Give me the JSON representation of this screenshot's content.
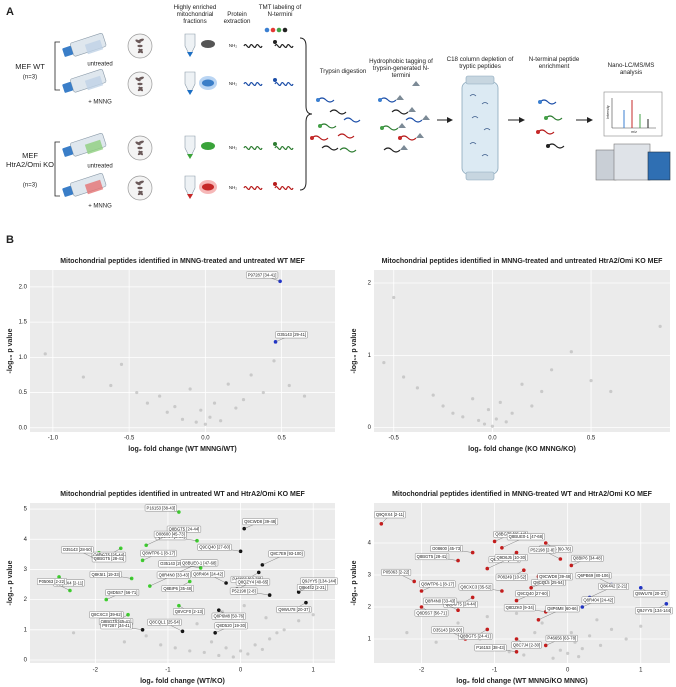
{
  "panel_a": {
    "label": "A",
    "columns": [
      "Highly enriched mitochondrial fractions",
      "Protein extraction",
      "TMT labeling of N-termini"
    ],
    "groups": [
      {
        "name": "MEF WT",
        "n": "(n=3)",
        "conditions": [
          "untreated",
          "+ MNNG"
        ]
      },
      {
        "name": "MEF HtrA2/Omi KO",
        "n": "(n=3)",
        "conditions": [
          "untreated",
          "+ MNNG"
        ]
      }
    ],
    "nh2": "NH₂",
    "steps": [
      "Trypsin digestion",
      "Hydrophobic tagging of trypsin-generated N-termini",
      "C18 column depletion of tryptic peptides",
      "N-terminal peptide enrichment",
      "Nano-LC/MS/MS analysis"
    ],
    "spectrum": {
      "ylabel": "Intensity",
      "xlabel": "m/z"
    }
  },
  "panel_b": {
    "label": "B"
  },
  "chart_data": [
    {
      "type": "scatter",
      "title": "Mitochondrial peptides identified in MNNG-treated and untreated WT MEF",
      "xlabel": "log₂ fold change (WT MNNG/WT)",
      "ylabel": "-log₁₀ p value",
      "xlim": [
        -1.15,
        0.85
      ],
      "ylim": [
        -0.06,
        2.24
      ],
      "xticks": [
        {
          "value": -1,
          "label": "-1.0"
        },
        -0.5,
        {
          "value": 0,
          "label": "0.0"
        },
        0.5
      ],
      "yticks": [
        {
          "value": 0,
          "label": "0.0"
        },
        0.5,
        {
          "value": 1,
          "label": "1.0"
        },
        1.5,
        {
          "value": 2,
          "label": "2.0"
        }
      ],
      "grid": true,
      "series": [
        {
          "color": "#bdbdbd",
          "x": [
            -1.05,
            -0.8,
            -0.62,
            -0.55,
            -0.45,
            -0.38,
            -0.3,
            -0.25,
            -0.2,
            -0.15,
            -0.1,
            -0.06,
            -0.03,
            0,
            0.03,
            0.06,
            0.1,
            0.15,
            0.2,
            0.25,
            0.3,
            0.38,
            0.45,
            0.55,
            0.65
          ],
          "values": [
            1.05,
            0.72,
            0.6,
            0.9,
            0.5,
            0.35,
            0.45,
            0.22,
            0.3,
            0.12,
            0.55,
            0.08,
            0.25,
            0.05,
            0.15,
            0.35,
            0.1,
            0.62,
            0.28,
            0.4,
            0.75,
            0.5,
            0.95,
            0.6,
            0.45
          ]
        },
        {
          "color": "#1f33c9",
          "x": [
            0.49,
            0.46
          ],
          "values": [
            2.08,
            1.22
          ],
          "labels": [
            "P97287 [34-41]",
            "O35143 [29-41]"
          ]
        }
      ]
    },
    {
      "type": "scatter",
      "title": "Mitochondrial peptides identified in MNNG-treated and untreated HtrA2/Omi KO MEF",
      "xlabel": "log₂ fold change (KO MNNG/KO)",
      "ylabel": "-log₁₀ p value",
      "xlim": [
        -0.6,
        0.9
      ],
      "ylim": [
        -0.06,
        2.18
      ],
      "xticks": [
        -0.5,
        {
          "value": 0,
          "label": "0.0"
        },
        0.5
      ],
      "yticks": [
        0,
        1,
        2
      ],
      "grid": true,
      "series": [
        {
          "color": "#bdbdbd",
          "x": [
            -0.55,
            -0.45,
            -0.38,
            -0.3,
            -0.25,
            -0.2,
            -0.15,
            -0.1,
            -0.07,
            -0.04,
            -0.02,
            0,
            0.02,
            0.04,
            0.07,
            0.1,
            0.15,
            0.2,
            0.25,
            0.3,
            0.4,
            0.5,
            0.6,
            0.85,
            -0.5
          ],
          "values": [
            0.9,
            0.7,
            0.55,
            0.45,
            0.3,
            0.2,
            0.15,
            0.4,
            0.1,
            0.05,
            0.25,
            0.02,
            0.12,
            0.35,
            0.08,
            0.2,
            0.6,
            0.3,
            0.5,
            0.8,
            1.05,
            0.65,
            0.5,
            1.4,
            1.8
          ]
        }
      ]
    },
    {
      "type": "scatter",
      "title": "Mitochondrial peptides identified in untreated WT and HtrA2/Omi KO MEF",
      "xlabel": "log₂ fold change (WT/KO)",
      "ylabel": "-log₁₀ p value",
      "xlim": [
        -2.9,
        1.3
      ],
      "ylim": [
        -0.1,
        5.2
      ],
      "xticks": [
        -2,
        -1,
        0,
        1
      ],
      "yticks": [
        0,
        1,
        2,
        3,
        4,
        5
      ],
      "grid": true,
      "series": [
        {
          "color": "#bdbdbd",
          "x": [
            -2.3,
            -1.9,
            -1.6,
            -1.3,
            -1.1,
            -0.9,
            -0.7,
            -0.5,
            -0.4,
            -0.3,
            -0.2,
            -0.1,
            0,
            0.1,
            0.2,
            0.3,
            0.4,
            0.5,
            0.6,
            0.8,
            1.0,
            -0.6,
            -0.25,
            0.05,
            0.35
          ],
          "values": [
            0.9,
            1.1,
            0.6,
            0.8,
            0.5,
            0.4,
            0.3,
            0.25,
            0.6,
            0.15,
            0.4,
            0.1,
            0.3,
            0.2,
            0.5,
            0.35,
            0.7,
            0.9,
            1.0,
            1.3,
            1.5,
            1.2,
            1.6,
            1.8,
            1.4
          ]
        },
        {
          "color": "#3ecf2f",
          "x": [
            -0.85,
            -1.0,
            -0.6,
            -1.3,
            -1.65,
            -1.95,
            -2.0,
            -1.35,
            -0.55,
            -0.9,
            -0.7,
            -2.5,
            -2.35,
            -1.85,
            -1.5,
            -1.25,
            -1.55,
            -0.85,
            -1.6
          ],
          "values": [
            4.9,
            4.1,
            3.95,
            3.8,
            3.7,
            3.55,
            3.35,
            3.3,
            3.05,
            2.85,
            2.6,
            2.75,
            2.3,
            2.0,
            2.7,
            2.45,
            1.5,
            1.8,
            1.2
          ],
          "labels": [
            "P16153 [38-43]",
            "Q8BGT5 [24-44]",
            "Q8C7J4 [2-30]",
            "O08600 [45-73]",
            "Q8BGT5 [25-44]",
            "Q8BGT5 [28-41]",
            "O35143 [28-50]",
            "Q8WTP6-1 [8-17]",
            "O35143 [29-41]",
            "Q8BUE0-1 [47-68]",
            "Q8BIP6 [35-48]",
            "Q9QXX4 [2-11]",
            "P05063 [2-22]",
            "Q8D5S7 [56-71]",
            "Q8K5I1 [19-33]",
            "Q8R4N0 [33-43]",
            "Q8BGT5 [25-41]",
            "Q8VCF0 [2-13]",
            "Q8CXC3 [39-62]"
          ]
        },
        {
          "color": "#111111",
          "x": [
            0.05,
            0.0,
            0.3,
            0.25,
            0.85,
            -0.2,
            -0.05,
            0.4,
            0.8,
            0.9,
            -0.3,
            -0.8,
            -0.35,
            -1.35
          ],
          "values": [
            4.35,
            3.6,
            3.15,
            2.9,
            2.6,
            2.55,
            2.35,
            2.15,
            2.25,
            1.9,
            1.65,
            0.95,
            0.9,
            1.0
          ],
          "labels": [
            "Q9CWD8 [39-48]",
            "Q9CQ40 [27-60]",
            "Q8C7E9 [93-100]",
            "P46656 [63-78]",
            "Q8K442 [2-21]",
            "Q8R404 [24-42]",
            "Q8QZY4 [40-65]",
            "P52198 [2-8]",
            "Q9JYY5 [134-144]",
            "Q9WU78 [20-37]",
            "Q8P6M8 [50-76]",
            "Q8CQL1 [25-54]",
            "Q8D520 [19-30]",
            "P97287 [34-41]"
          ]
        }
      ]
    },
    {
      "type": "scatter",
      "title": "Mitochondrial peptides identified in MNNG-treated WT and HtrA2/Omi KO MEF",
      "xlabel": "log₂ fold change (WT MNNG/KO MNNG)",
      "ylabel": "-log₁₀ p value",
      "xlim": [
        -2.65,
        1.4
      ],
      "ylim": [
        0.25,
        5.25
      ],
      "xticks": [
        -2,
        -1,
        0,
        1
      ],
      "yticks": [
        1,
        2,
        3,
        4
      ],
      "grid": true,
      "series": [
        {
          "color": "#bdbdbd",
          "x": [
            -2.2,
            -1.8,
            -1.5,
            -1.2,
            -1.0,
            -0.8,
            -0.6,
            -0.45,
            -0.3,
            -0.2,
            -0.1,
            0,
            0.1,
            0.2,
            0.3,
            0.45,
            0.6,
            0.8,
            1.0,
            -0.7,
            -0.35,
            0.05,
            0.4,
            -1.1,
            0.15
          ],
          "values": [
            1.2,
            0.9,
            1.5,
            1.0,
            0.7,
            0.6,
            0.5,
            1.2,
            0.8,
            0.4,
            0.65,
            0.55,
            0.9,
            0.7,
            1.1,
            0.8,
            1.3,
            1.0,
            1.4,
            1.8,
            1.5,
            1.2,
            1.6,
            1.7,
            0.45
          ]
        },
        {
          "color": "#c91a1a",
          "x": [
            -2.55,
            -1.0,
            -1.3,
            -0.9,
            -0.7,
            -0.3,
            -0.1,
            0.05,
            -1.5,
            -1.1,
            -0.6,
            -0.4,
            -2.1,
            -2.0,
            -0.9,
            -0.5,
            -1.3,
            -2.0,
            -1.5,
            -0.7,
            -0.3,
            -0.4,
            -1.1,
            -0.7,
            -1.4,
            -0.3,
            -0.7
          ],
          "values": [
            4.6,
            4.05,
            3.7,
            3.85,
            3.7,
            4.0,
            3.5,
            3.3,
            3.45,
            3.2,
            3.15,
            2.95,
            2.8,
            2.5,
            2.5,
            2.6,
            2.3,
            2.0,
            1.9,
            2.2,
            1.85,
            1.6,
            1.3,
            1.0,
            1.0,
            0.8,
            0.6
          ],
          "labels": [
            "Q9QXX4 [2-11]",
            "Q8BGT5 [25-44]",
            "O08600 [45-73]",
            "Q8BUE0-1 [47-68]",
            "Q8VCF0 [2-13]",
            "Q6PB66 [60-76]",
            "P52198 [2-8]",
            "Q8BIP6 [34-48]",
            "Q8BGT5 [28-41]",
            "Q9D6J5 [10-30]",
            "P08249 [10-52]",
            "Q8CQL5 [25-54]",
            "P05063 [2-22]",
            "Q8WTP6-1 [8-17]",
            "Q8CXC3 [35-52]",
            "Q9CWD8 [39-48]",
            "Q8BGT5 [24-44]",
            "Q8D5S7 [56-71]",
            "Q8R4N0 [33-43]",
            "Q9CQ40 [27-60]",
            "Q8DZK0 [9-34]",
            "Q8P6M8 [60-66]",
            "Q8BGT5 [24-41]",
            "Q8C7J4 [2-30]",
            "O35143 [28-50]",
            "P46656 [63-78]",
            "P16153 [38-43]"
          ]
        },
        {
          "color": "#1f33c9",
          "x": [
            0.3,
            1.35,
            1.0,
            0.6,
            0.2
          ],
          "values": [
            2.3,
            2.1,
            2.6,
            2.7,
            2.0
          ],
          "labels": [
            "Q8K442 [2-21]",
            "Q9JYY5 [134-144]",
            "Q9WU78 [20-37]",
            "Q6PB69 [80-106]",
            "Q8R404 [24-42]"
          ]
        }
      ]
    }
  ]
}
